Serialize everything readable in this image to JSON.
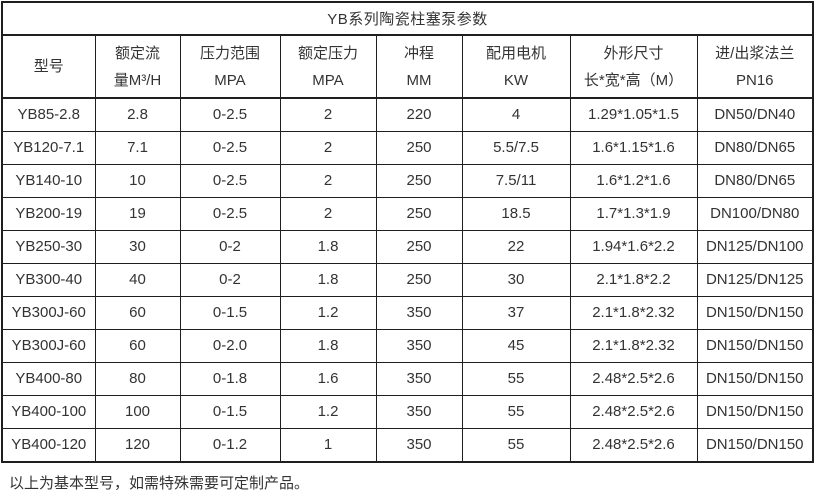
{
  "title": "YB系列陶瓷柱塞泵参数",
  "table": {
    "headers": [
      {
        "line1": "型号",
        "line2": ""
      },
      {
        "line1": "额定流",
        "line2": "量M³/H"
      },
      {
        "line1": "压力范围",
        "line2": "MPA"
      },
      {
        "line1": "额定压力",
        "line2": "MPA"
      },
      {
        "line1": "冲程",
        "line2": "MM"
      },
      {
        "line1": "配用电机",
        "line2": "KW"
      },
      {
        "line1": "外形尺寸",
        "line2": "长*宽*高（M）"
      },
      {
        "line1": "进/出浆法兰",
        "line2": "PN16"
      }
    ],
    "rows": [
      [
        "YB85-2.8",
        "2.8",
        "0-2.5",
        "2",
        "220",
        "4",
        "1.29*1.05*1.5",
        "DN50/DN40"
      ],
      [
        "YB120-7.1",
        "7.1",
        "0-2.5",
        "2",
        "250",
        "5.5/7.5",
        "1.6*1.15*1.6",
        "DN80/DN65"
      ],
      [
        "YB140-10",
        "10",
        "0-2.5",
        "2",
        "250",
        "7.5/11",
        "1.6*1.2*1.6",
        "DN80/DN65"
      ],
      [
        "YB200-19",
        "19",
        "0-2.5",
        "2",
        "250",
        "18.5",
        "1.7*1.3*1.9",
        "DN100/DN80"
      ],
      [
        "YB250-30",
        "30",
        "0-2",
        "1.8",
        "250",
        "22",
        "1.94*1.6*2.2",
        "DN125/DN100"
      ],
      [
        "YB300-40",
        "40",
        "0-2",
        "1.8",
        "250",
        "30",
        "2.1*1.8*2.2",
        "DN125/DN125"
      ],
      [
        "YB300J-60",
        "60",
        "0-1.5",
        "1.2",
        "350",
        "37",
        "2.1*1.8*2.32",
        "DN150/DN150"
      ],
      [
        "YB300J-60",
        "60",
        "0-2.0",
        "1.8",
        "350",
        "45",
        "2.1*1.8*2.32",
        "DN150/DN150"
      ],
      [
        "YB400-80",
        "80",
        "0-1.8",
        "1.6",
        "350",
        "55",
        "2.48*2.5*2.6",
        "DN150/DN150"
      ],
      [
        "YB400-100",
        "100",
        "0-1.5",
        "1.2",
        "350",
        "55",
        "2.48*2.5*2.6",
        "DN150/DN150"
      ],
      [
        "YB400-120",
        "120",
        "0-1.2",
        "1",
        "350",
        "55",
        "2.48*2.5*2.6",
        "DN150/DN150"
      ]
    ]
  },
  "footer_note": "以上为基本型号，如需特殊需要可定制产品。",
  "colors": {
    "text": "#333333",
    "border": "#1f1f1f",
    "background": "#ffffff"
  }
}
